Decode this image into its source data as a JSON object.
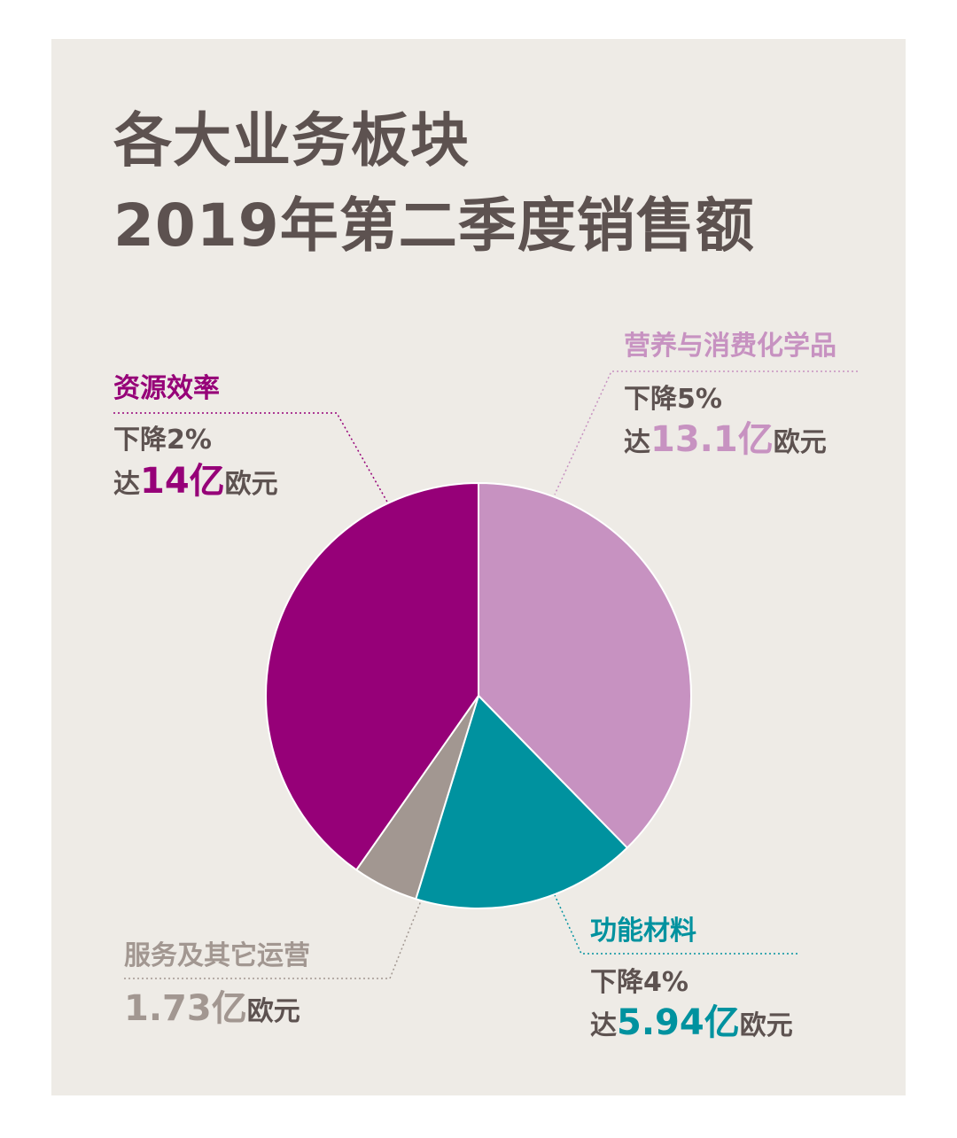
{
  "title": {
    "line1": "各大业务板块",
    "line2": "2019年第二季度销售额"
  },
  "colors": {
    "background": "#eeebe6",
    "title": "#5d5250",
    "resource": "#960078",
    "nutrition": "#c792c1",
    "functional": "#00929f",
    "services": "#a29791"
  },
  "chart_data": {
    "type": "pie",
    "start": "12 o'clock",
    "direction": "clockwise",
    "unit": "亿欧元",
    "slices": [
      {
        "name": "营养与消费化学品",
        "value": 13.1,
        "change": "下降5%",
        "color": "#c792c1"
      },
      {
        "name": "功能材料",
        "value": 5.94,
        "change": "下降4%",
        "color": "#00929f"
      },
      {
        "name": "服务及其它运营",
        "value": 1.73,
        "change": "",
        "color": "#a29791"
      },
      {
        "name": "资源效率",
        "value": 14,
        "change": "下降2%",
        "color": "#960078"
      }
    ]
  },
  "labels": {
    "resource": {
      "name": "资源效率",
      "change": "下降2%",
      "prefix": "达",
      "value": "14亿",
      "unit": "欧元"
    },
    "nutrition": {
      "name": "营养与消费化学品",
      "change": "下降5%",
      "prefix": "达",
      "value": "13.1亿",
      "unit": "欧元"
    },
    "functional": {
      "name": "功能材料",
      "change": "下降4%",
      "prefix": "达",
      "value": "5.94亿",
      "unit": "欧元"
    },
    "services": {
      "name": "服务及其它运营",
      "value": "1.73亿",
      "unit": "欧元"
    }
  }
}
